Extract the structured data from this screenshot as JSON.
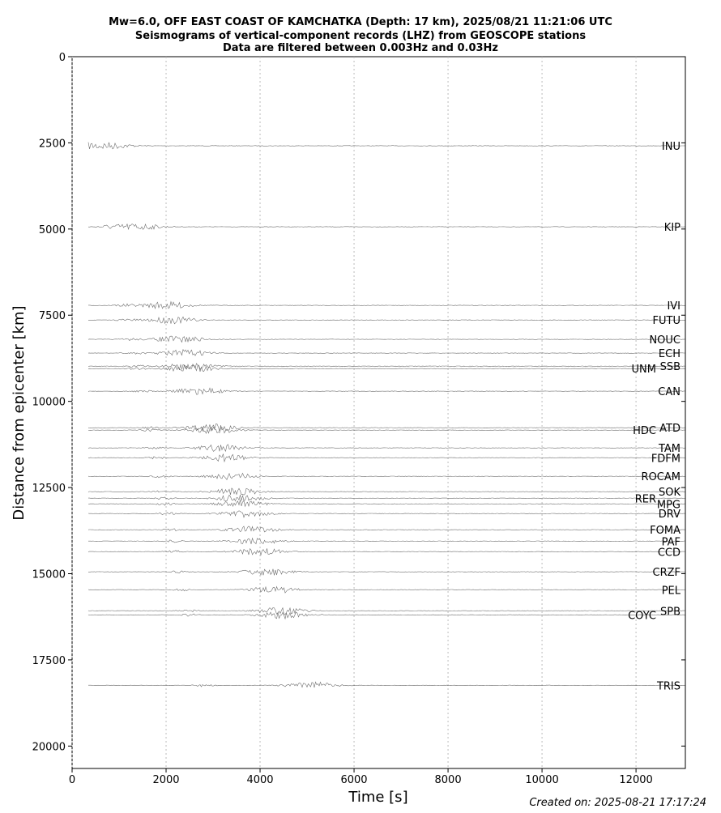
{
  "chart_data": {
    "type": "record_section",
    "title": [
      "Mw=6.0, OFF EAST COAST OF KAMCHATKA (Depth: 17 km), 2025/08/21 11:21:06 UTC",
      "Seismograms of vertical-component records (LHZ) from GEOSCOPE stations",
      "Data are filtered between 0.003Hz and 0.03Hz"
    ],
    "x_label": "Time [s]",
    "y_label": "Distance from epicenter [km]",
    "xlim": [
      0,
      13050
    ],
    "ylim": [
      0,
      20650
    ],
    "y_inverted": true,
    "xticks": [
      0,
      2000,
      4000,
      6000,
      8000,
      10000,
      12000
    ],
    "yticks": [
      0,
      2500,
      5000,
      7500,
      10000,
      12500,
      15000,
      17500,
      20000
    ],
    "grid": "x-dotted",
    "color": "#555555",
    "stations": [
      "INU",
      "KIP",
      "IVI",
      "FUTU",
      "NOUC",
      "ECH",
      "SSB",
      "UNM",
      "CAN",
      "ATD",
      "HDC",
      "TAM",
      "FDFM",
      "ROCAM",
      "SOK",
      "RER",
      "MPG",
      "DRV",
      "FOMA",
      "PAF",
      "CCD",
      "CRZF",
      "PEL",
      "SPB",
      "COYC",
      "TRIS"
    ],
    "distances": [
      2585,
      4935,
      7215,
      7640,
      8200,
      8600,
      8980,
      9050,
      9705,
      10765,
      10835,
      11350,
      11635,
      12175,
      12620,
      12810,
      12975,
      13255,
      13725,
      14055,
      14360,
      14945,
      15465,
      16075,
      16195,
      18240
    ],
    "logo": "geoscope",
    "footer": "Created on: 2025-08-21 17:17:24"
  }
}
